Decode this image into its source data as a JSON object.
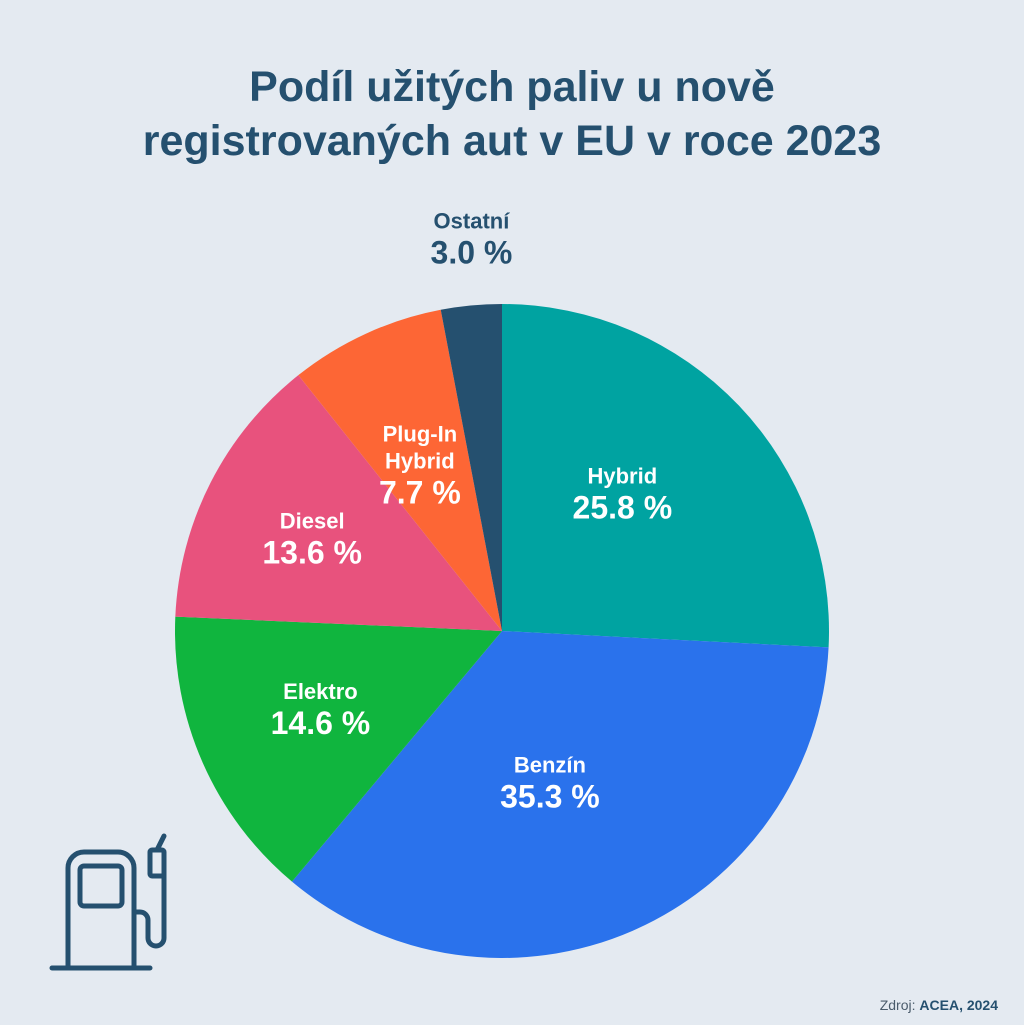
{
  "title": [
    "Podíl užitých paliv u nově",
    "registrovaných aut v EU v roce 2023"
  ],
  "source": {
    "prefix": "Zdroj:",
    "value": "ACEA, 2024"
  },
  "icon": "fuel-pump-icon",
  "chart_data": {
    "type": "pie",
    "title": "Podíl užitých paliv u nově registrovaných aut v EU v roce 2023",
    "slices": [
      {
        "label": [
          "Hybrid"
        ],
        "percent_text": "25.8 %",
        "value": 25.8,
        "color": "#00a3a1",
        "label_color": "#ffffff"
      },
      {
        "label": [
          "Benzín"
        ],
        "percent_text": "35.3 %",
        "value": 35.3,
        "color": "#2a72ec",
        "label_color": "#ffffff"
      },
      {
        "label": [
          "Elektro"
        ],
        "percent_text": "14.6 %",
        "value": 14.6,
        "color": "#10b53e",
        "label_color": "#ffffff"
      },
      {
        "label": [
          "Diesel"
        ],
        "percent_text": "13.6 %",
        "value": 13.6,
        "color": "#e8527d",
        "label_color": "#ffffff"
      },
      {
        "label": [
          "Plug-In",
          "Hybrid"
        ],
        "percent_text": "7.7 %",
        "value": 7.7,
        "color": "#fd6635",
        "label_color": "#ffffff"
      },
      {
        "label": [
          "Ostatní"
        ],
        "percent_text": "3.0 %",
        "value": 3.0,
        "color": "#25506f",
        "label_color": "#25506f"
      }
    ]
  }
}
